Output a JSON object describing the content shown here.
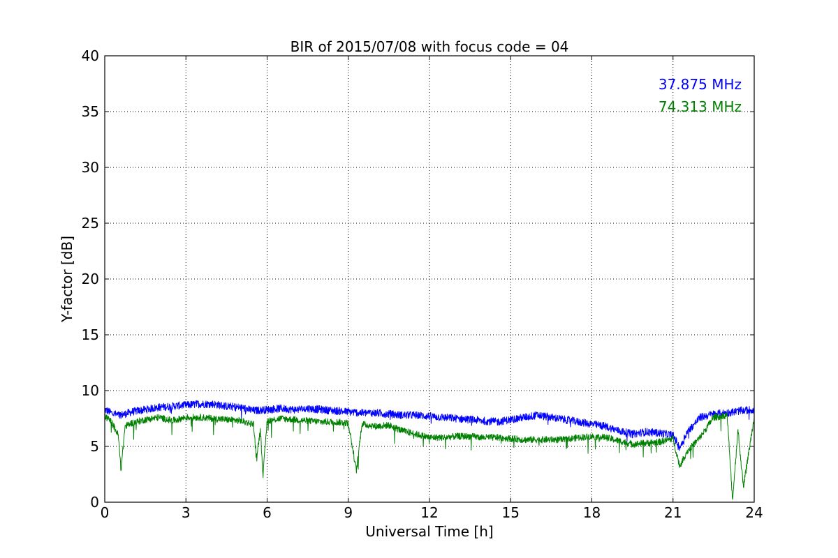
{
  "chart_data": {
    "type": "line",
    "title": "BIR of 2015/07/08 with focus code = 04",
    "xlabel": "Universal Time [h]",
    "ylabel": "Y-factor [dB]",
    "xlim": [
      0,
      24
    ],
    "ylim": [
      0,
      40
    ],
    "xticks": [
      0,
      3,
      6,
      9,
      12,
      15,
      18,
      21,
      24
    ],
    "yticks": [
      0,
      5,
      10,
      15,
      20,
      25,
      30,
      35,
      40
    ],
    "grid": true,
    "legend_position": "top-right",
    "series": [
      {
        "name": "37.875 MHz",
        "color": "#0000ff",
        "x": [
          0,
          0.25,
          0.5,
          0.75,
          1.0,
          1.5,
          2.0,
          2.5,
          3.0,
          3.5,
          4.0,
          4.5,
          5.0,
          5.5,
          6.0,
          6.5,
          7.0,
          7.5,
          8.0,
          8.5,
          9.0,
          9.5,
          10.0,
          10.5,
          11.0,
          11.5,
          12.0,
          12.5,
          13.0,
          13.5,
          14.0,
          14.5,
          15.0,
          15.5,
          16.0,
          16.5,
          17.0,
          17.5,
          18.0,
          18.5,
          19.0,
          19.5,
          20.0,
          20.5,
          21.0,
          21.25,
          21.5,
          22.0,
          22.5,
          23.0,
          23.5,
          24.0
        ],
        "values": [
          8.3,
          8.0,
          7.8,
          7.9,
          8.1,
          8.3,
          8.5,
          8.6,
          8.7,
          8.8,
          8.8,
          8.6,
          8.5,
          8.2,
          8.3,
          8.4,
          8.3,
          8.4,
          8.3,
          8.2,
          8.1,
          8.0,
          8.0,
          7.9,
          7.8,
          7.8,
          7.7,
          7.6,
          7.5,
          7.4,
          7.3,
          7.2,
          7.4,
          7.6,
          7.8,
          7.6,
          7.4,
          7.2,
          7.0,
          6.8,
          6.4,
          6.1,
          6.3,
          6.2,
          6.0,
          4.9,
          6.2,
          7.6,
          7.9,
          8.0,
          8.2,
          8.3
        ]
      },
      {
        "name": "74.313 MHz",
        "color": "#008000",
        "x": [
          0,
          0.25,
          0.5,
          0.6,
          0.75,
          1.0,
          1.5,
          2.0,
          2.5,
          3.0,
          3.5,
          4.0,
          4.5,
          5.0,
          5.5,
          5.6,
          5.75,
          5.85,
          6.0,
          6.5,
          7.0,
          7.5,
          8.0,
          8.5,
          9.0,
          9.3,
          9.5,
          10.0,
          10.5,
          11.0,
          11.5,
          12.0,
          12.5,
          13.0,
          13.5,
          14.0,
          14.5,
          15.0,
          15.5,
          16.0,
          16.5,
          17.0,
          17.5,
          18.0,
          18.5,
          19.0,
          19.5,
          20.0,
          20.5,
          21.0,
          21.25,
          21.5,
          22.0,
          22.5,
          23.0,
          23.2,
          23.4,
          23.6,
          24.0
        ],
        "values": [
          7.7,
          7.2,
          6.0,
          2.9,
          6.8,
          7.1,
          7.4,
          7.6,
          7.3,
          7.6,
          7.6,
          7.5,
          7.4,
          7.3,
          7.0,
          3.9,
          6.5,
          2.4,
          7.3,
          7.5,
          7.4,
          7.3,
          7.2,
          7.2,
          7.1,
          2.8,
          7.0,
          6.8,
          6.9,
          6.4,
          6.1,
          5.8,
          5.8,
          5.9,
          5.9,
          5.8,
          5.8,
          5.7,
          5.6,
          5.6,
          5.6,
          5.6,
          5.8,
          5.9,
          5.8,
          5.5,
          5.2,
          5.3,
          5.4,
          5.7,
          3.2,
          4.5,
          5.8,
          7.6,
          7.8,
          0.2,
          6.5,
          1.4,
          7.6
        ]
      }
    ]
  }
}
